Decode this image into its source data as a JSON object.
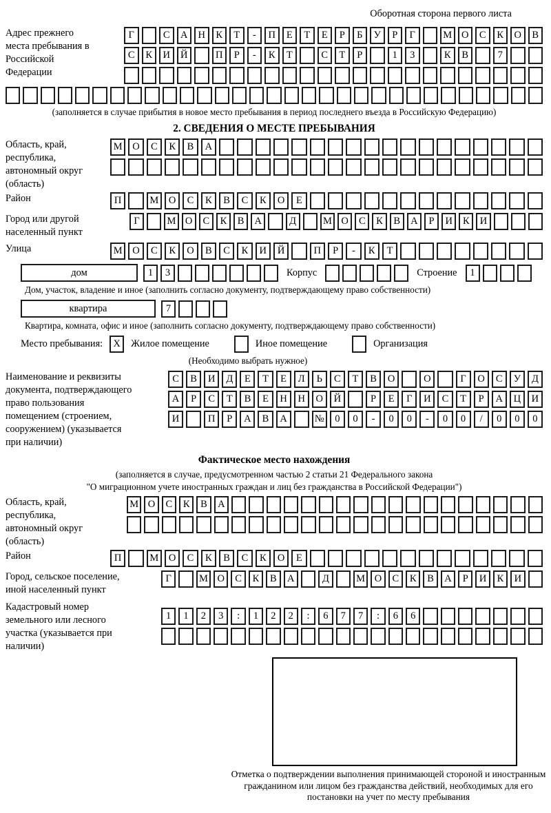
{
  "page": {
    "header_note": "Оборотная сторона первого листа"
  },
  "prev_address": {
    "label": "Адрес прежнего места пребывания в Российской Федерации",
    "rows": [
      {
        "len": 24,
        "text": "Г САНКТ-ПЕТЕРБУРГ МОСКОВ"
      },
      {
        "len": 24,
        "text": "СКИЙ ПР-КТ СТР 13 КВ 7"
      },
      {
        "len": 24,
        "text": ""
      },
      {
        "len": 31,
        "text": ""
      }
    ],
    "caption": "(заполняется в случае прибытия в новое место пребывания в период последнего въезда в Российскую Федерацию)"
  },
  "section2": {
    "title": "2. СВЕДЕНИЯ О МЕСТЕ ПРЕБЫВАНИЯ",
    "region": {
      "label": "Область, край, республика, автономный округ (область)",
      "rows": [
        {
          "len": 24,
          "text": "МОСКВА"
        },
        {
          "len": 24,
          "text": ""
        }
      ]
    },
    "district": {
      "label": "Район",
      "row": {
        "len": 24,
        "text": "П МОСКВСКОЕ"
      }
    },
    "city": {
      "label": "Город или другой населенный пункт",
      "row": {
        "len": 24,
        "text": "Г МОСКВА Д МОСКВАРИКИ"
      }
    },
    "street": {
      "label": "Улица",
      "row": {
        "len": 24,
        "text": "МОСКОВСКИЙ ПР-КТ"
      }
    },
    "house": {
      "label": "дом",
      "cells": {
        "len": 8,
        "text": "13"
      },
      "korpus_label": "Корпус",
      "korpus_cells": {
        "len": 5,
        "text": ""
      },
      "stroenie_label": "Строение",
      "stroenie_cells": {
        "len": 4,
        "text": "1"
      }
    },
    "house_caption": "Дом, участок, владение и иное (заполнить согласно документу, подтверждающему право собственности)",
    "apartment": {
      "label": "квартира",
      "cells": {
        "len": 4,
        "text": "7"
      }
    },
    "apartment_caption": "Квартира, комната, офис и иное (заполнить согласно документу, подтверждающему право собственности)",
    "stay": {
      "label": "Место пребывания:",
      "options": [
        {
          "label": "Жилое помещение",
          "value": "X"
        },
        {
          "label": "Иное помещение",
          "value": ""
        },
        {
          "label": "Организация",
          "value": ""
        }
      ],
      "note": "(Необходимо выбрать нужное)"
    },
    "document": {
      "label": "Наименование и реквизиты документа, подтверждающего право пользования помещением (строением, сооружением) (указывается при наличии)",
      "rows": [
        {
          "len": 21,
          "text": "СВИДЕТЕЛЬСТВО О ГОСУД"
        },
        {
          "len": 21,
          "text": "АРСТВЕННОЙ РЕГИСТРАЦИ"
        },
        {
          "len": 21,
          "text": "И ПРАВА №00-00-00/000"
        }
      ]
    }
  },
  "actual_location": {
    "title": "Фактическое место нахождения",
    "subtitle1": "(заполняется в случае, предусмотренном частью 2 статьи 21 Федерального закона",
    "subtitle2": "\"О миграционном учете иностранных граждан и лиц без гражданства в Российской Федерации\")",
    "region": {
      "label": "Область, край, республика, автономный округ (область)",
      "rows": [
        {
          "len": 24,
          "text": "МОСКВА"
        },
        {
          "len": 24,
          "text": ""
        }
      ]
    },
    "district": {
      "label": "Район",
      "row": {
        "len": 24,
        "text": "П МОСКВСКОЕ"
      }
    },
    "city": {
      "label": "Город, сельское поселение, иной населенный пункт",
      "row": {
        "len": 22,
        "text": "Г МОСКВА Д МОСКВАРИКИ"
      }
    },
    "cadastral": {
      "label": "Кадастровый номер земельного или лесного участка (указывается при наличии)",
      "rows": [
        {
          "len": 22,
          "text": "1123:122:677:66"
        },
        {
          "len": 22,
          "text": ""
        }
      ]
    }
  },
  "stamp": {
    "caption": "Отметка о подтверждении выполнения принимающей стороной и иностранным гражданином или лицом без гражданства действий, необходимых для его постановки на учет по месту пребывания"
  }
}
